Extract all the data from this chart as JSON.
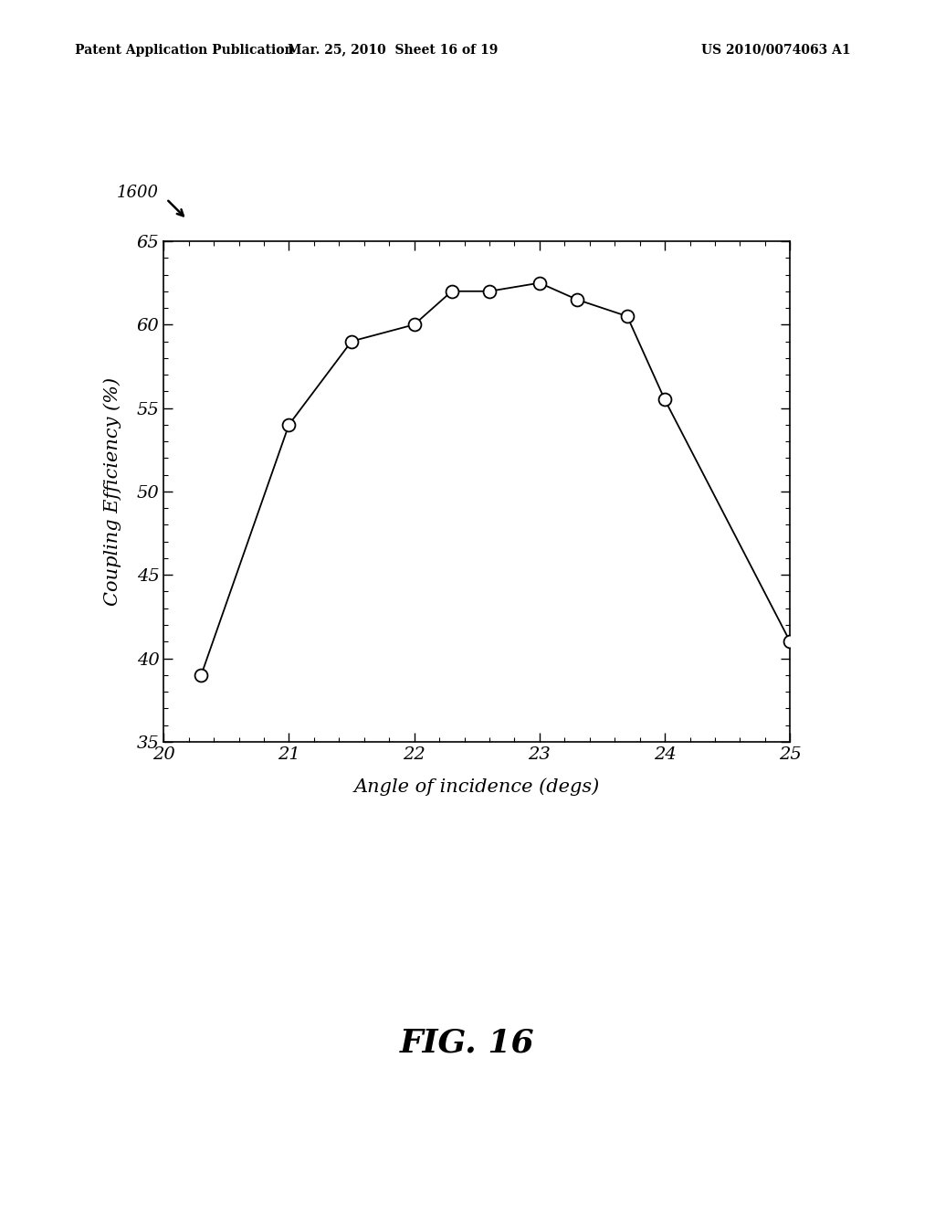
{
  "x_data": [
    20.3,
    21.0,
    21.5,
    22.0,
    22.3,
    22.6,
    23.0,
    23.3,
    23.7,
    24.0,
    25.0
  ],
  "y_data": [
    39.0,
    54.0,
    59.0,
    60.0,
    62.0,
    62.0,
    62.5,
    61.5,
    60.5,
    55.5,
    41.0
  ],
  "xlim": [
    20,
    25
  ],
  "ylim": [
    35,
    65
  ],
  "xticks": [
    20,
    21,
    22,
    23,
    24,
    25
  ],
  "yticks": [
    35,
    40,
    45,
    50,
    55,
    60,
    65
  ],
  "xlabel": "Angle of incidence (degs)",
  "ylabel": "Coupling Efficiency (%)",
  "figure_label": "1600",
  "fig_title": "FIG. 16",
  "header_left": "Patent Application Publication",
  "header_mid": "Mar. 25, 2010  Sheet 16 of 19",
  "header_right": "US 2010/0074063 A1",
  "background_color": "#ffffff",
  "line_color": "#000000",
  "marker_color": "#ffffff",
  "marker_edge_color": "#000000"
}
